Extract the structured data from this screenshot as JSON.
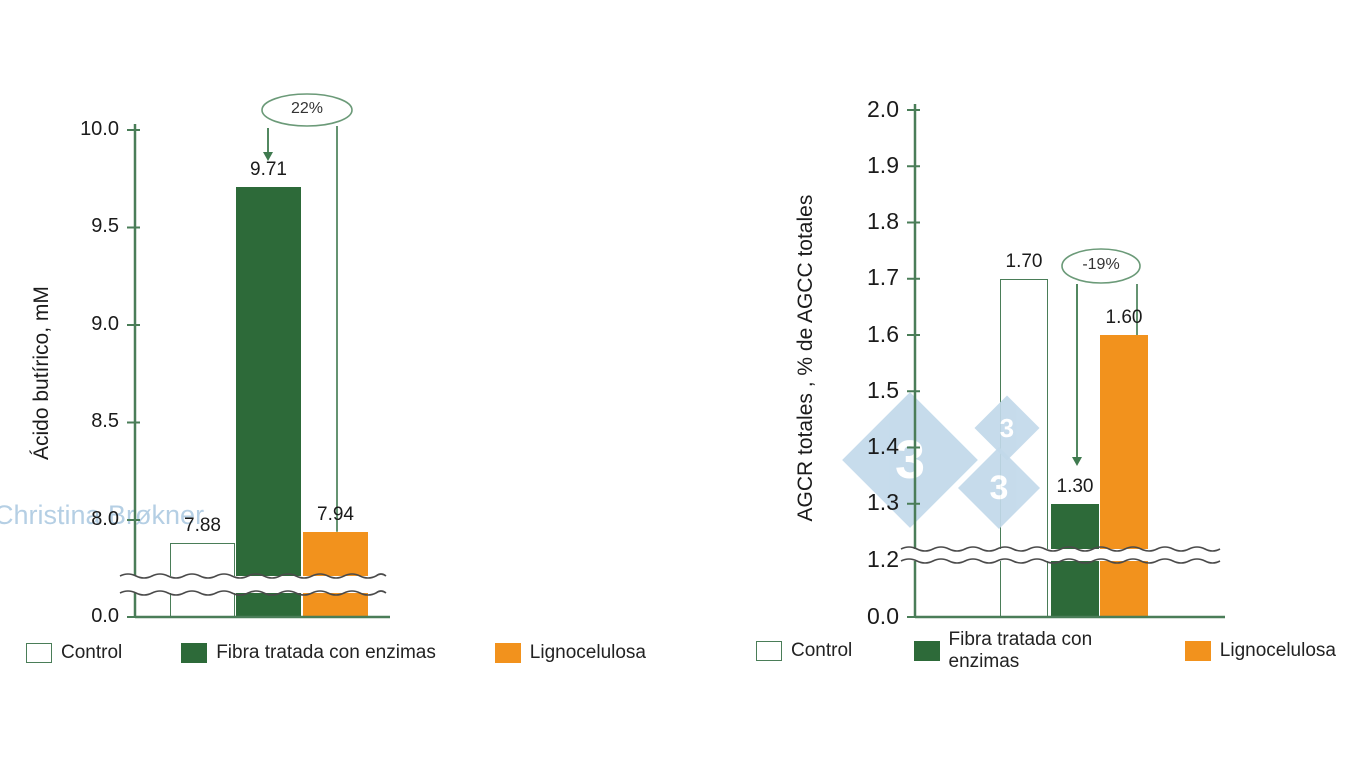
{
  "chart_data": [
    {
      "type": "bar",
      "title": "",
      "xlabel": "",
      "ylabel": "Ácido butírico, mM",
      "categories": [
        "Control",
        "Fibra tratada con enzimas",
        "Lignocelulosa"
      ],
      "values": [
        7.88,
        9.71,
        7.94
      ],
      "bar_value_labels": [
        "7.88",
        "9.71",
        "7.94"
      ],
      "ylim_linear": [
        8.0,
        10.0
      ],
      "baseline_value": 0.0,
      "baseline_tick": "0.0",
      "ytick_values": [
        10.0,
        9.5,
        9.0,
        8.5,
        8.0
      ],
      "yticks_linear": [
        "10.0",
        "9.5",
        "9.0",
        "8.5",
        "8.0"
      ],
      "axis_break": true,
      "grid": false,
      "legend_position": "bottom",
      "annotation": {
        "text": "22%",
        "arrow_target": "Fibra tratada con enzimas",
        "line_target": "Lignocelulosa"
      },
      "legend": [
        "Control",
        "Fibra tratada con enzimas",
        "Lignocelulosa"
      ]
    },
    {
      "type": "bar",
      "title": "",
      "xlabel": "",
      "ylabel": "AGCR totales , % de AGCC totales",
      "categories": [
        "Control",
        "Fibra tratada con enzimas",
        "Lignocelulosa"
      ],
      "values": [
        1.7,
        1.3,
        1.6
      ],
      "bar_value_labels": [
        "1.70",
        "1.30",
        "1.60"
      ],
      "ylim_linear": [
        1.2,
        2.0
      ],
      "baseline_value": 0.0,
      "baseline_tick": "0.0",
      "ytick_values": [
        2.0,
        1.9,
        1.8,
        1.7,
        1.6,
        1.5,
        1.4,
        1.3,
        1.2
      ],
      "yticks_linear": [
        "2.0",
        "1.9",
        "1.8",
        "1.7",
        "1.6",
        "1.5",
        "1.4",
        "1.3",
        "1.2"
      ],
      "axis_break": true,
      "grid": false,
      "legend_position": "bottom",
      "annotation": {
        "text": "-19%",
        "arrow_target": "Fibra tratada con enzimas",
        "line_target": "Lignocelulosa"
      },
      "legend": [
        "Control",
        "Fibra tratada con enzimas",
        "Lignocelulosa"
      ]
    }
  ],
  "colors": {
    "control_fill": "#ffffff",
    "control_border": "#4a7d58",
    "enzimas": "#2d6a39",
    "lignocelulosa": "#f2921d",
    "axis": "#4a7d58",
    "annotation": "#3f7a4f",
    "annotation_light": "#6b9a78",
    "break_line": "#4a4a4a",
    "watermark_blue": "#c2d9ea",
    "watermark_text": "#b5cfe4"
  },
  "watermarks": {
    "author": "Christina Brøkner",
    "logo_digits": [
      "3",
      "3",
      "3"
    ]
  }
}
